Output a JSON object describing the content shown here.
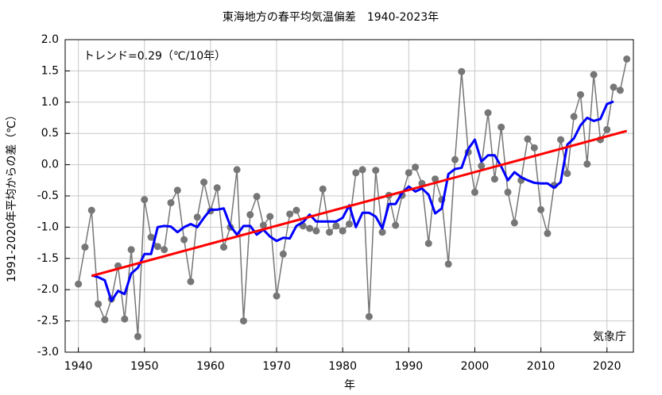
{
  "chart_data": {
    "type": "line",
    "title": "東海地方の春平均気温偏差　1940-2023年",
    "annotation": "トレンド=0.29（℃/10年）",
    "source": "気象庁",
    "xlabel": "年",
    "ylabel": "1991-2020年平均からの差（℃）",
    "xlim": [
      1938,
      2024
    ],
    "xticks": [
      1940,
      1950,
      1960,
      1970,
      1980,
      1990,
      2000,
      2010,
      2020
    ],
    "ylim": [
      -3,
      2
    ],
    "yticks": [
      {
        "value": -3,
        "label": "-3.0"
      },
      {
        "value": -2.5,
        "label": "-2.5"
      },
      {
        "value": -2,
        "label": "-2.0"
      },
      {
        "value": -1.5,
        "label": "-1.5"
      },
      {
        "value": -1,
        "label": "-1.0"
      },
      {
        "value": -0.5,
        "label": "-0.5"
      },
      {
        "value": 0,
        "label": "0.0"
      },
      {
        "value": 0.5,
        "label": "0.5"
      },
      {
        "value": 1,
        "label": "1.0"
      },
      {
        "value": 1.5,
        "label": "1.5"
      },
      {
        "value": 2,
        "label": "2.0"
      }
    ],
    "grid": true,
    "x": [
      1940,
      1941,
      1942,
      1943,
      1944,
      1945,
      1946,
      1947,
      1948,
      1949,
      1950,
      1951,
      1952,
      1953,
      1954,
      1955,
      1956,
      1957,
      1958,
      1959,
      1960,
      1961,
      1962,
      1963,
      1964,
      1965,
      1966,
      1967,
      1968,
      1969,
      1970,
      1971,
      1972,
      1973,
      1974,
      1975,
      1976,
      1977,
      1978,
      1979,
      1980,
      1981,
      1982,
      1983,
      1984,
      1985,
      1986,
      1987,
      1988,
      1989,
      1990,
      1991,
      1992,
      1993,
      1994,
      1995,
      1996,
      1997,
      1998,
      1999,
      2000,
      2001,
      2002,
      2003,
      2004,
      2005,
      2006,
      2007,
      2008,
      2009,
      2010,
      2011,
      2012,
      2013,
      2014,
      2015,
      2016,
      2017,
      2018,
      2019,
      2020,
      2021,
      2022,
      2023
    ],
    "series": [
      {
        "color": "#767676",
        "markers": true,
        "values": [
          -1.91,
          -1.32,
          -0.73,
          -2.23,
          -2.48,
          -2.15,
          -1.62,
          -2.47,
          -1.36,
          -2.75,
          -0.56,
          -1.16,
          -1.31,
          -1.36,
          -0.61,
          -0.41,
          -1.2,
          -1.87,
          -0.84,
          -0.28,
          -0.74,
          -0.37,
          -1.32,
          -1.0,
          -0.08,
          -2.5,
          -0.8,
          -0.51,
          -0.97,
          -0.83,
          -2.1,
          -1.43,
          -0.79,
          -0.73,
          -0.98,
          -1.02,
          -1.06,
          -0.39,
          -1.08,
          -0.98,
          -1.06,
          -0.95,
          -0.13,
          -0.08,
          -2.43,
          -0.09,
          -1.08,
          -0.49,
          -0.97,
          -0.49,
          -0.13,
          -0.04,
          -0.3,
          -1.26,
          -0.23,
          -0.56,
          -1.59,
          0.08,
          1.49,
          0.2,
          -0.44,
          -0.02,
          0.83,
          -0.23,
          0.6,
          -0.44,
          -0.93,
          -0.25,
          0.41,
          0.27,
          -0.72,
          -1.1,
          -0.33,
          0.4,
          -0.14,
          0.77,
          1.12,
          0.01,
          1.44,
          0.4,
          0.56,
          1.24,
          1.19,
          1.69
        ]
      },
      {
        "color": "#0000ff",
        "markers": false,
        "values": [
          null,
          null,
          -1.77,
          -1.8,
          -1.85,
          -2.18,
          -2.02,
          -2.07,
          -1.74,
          -1.65,
          -1.43,
          -1.43,
          -1.0,
          -0.98,
          -0.99,
          -1.08,
          -1.0,
          -0.95,
          -1.0,
          -0.85,
          -0.72,
          -0.72,
          -0.7,
          -0.98,
          -1.12,
          -0.98,
          -0.98,
          -1.12,
          -1.04,
          -1.15,
          -1.22,
          -1.17,
          -1.18,
          -0.98,
          -0.92,
          -0.8,
          -0.91,
          -0.91,
          -0.91,
          -0.91,
          -0.85,
          -0.65,
          -1.0,
          -0.77,
          -0.77,
          -0.83,
          -1.02,
          -0.63,
          -0.63,
          -0.45,
          -0.35,
          -0.43,
          -0.38,
          -0.48,
          -0.78,
          -0.7,
          -0.15,
          -0.07,
          -0.05,
          0.25,
          0.4,
          0.05,
          0.15,
          0.15,
          -0.03,
          -0.25,
          -0.12,
          -0.2,
          -0.25,
          -0.29,
          -0.3,
          -0.3,
          -0.37,
          -0.28,
          0.32,
          0.42,
          0.63,
          0.75,
          0.7,
          0.73,
          0.97,
          1.01,
          null,
          null
        ]
      },
      {
        "color": "#ff0000",
        "markers": false,
        "x": [
          1942,
          2023
        ],
        "values": [
          -1.78,
          0.54
        ]
      }
    ]
  }
}
